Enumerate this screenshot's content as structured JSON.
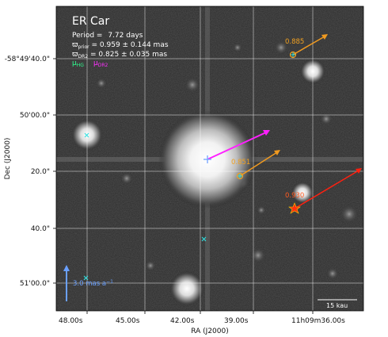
{
  "chart_data": {
    "type": "scatter",
    "title": "ER Car",
    "legend_lines": {
      "period_label": "Period = ",
      "period_value": "7.72 days",
      "plx_prior": "ϖ",
      "plx_prior_sub": "prior",
      "plx_prior_value": " = 0.959 ± 0.144 mas",
      "plx_dr2": "ϖ",
      "plx_dr2_sub": "DR2",
      "plx_dr2_value": " = 0.825 ± 0.035 mas",
      "mu_hg": "μ",
      "mu_hg_sub": "HG",
      "mu_dr2": "μ",
      "mu_dr2_sub": "DR2"
    },
    "xlabel": "RA (J2000)",
    "ylabel": "Dec (J2000)",
    "xticks": [
      "48.00s",
      "45.00s",
      "42.00s",
      "39.00s",
      "11h09m36.00s"
    ],
    "yticks": [
      "-58°49'40.0\"",
      "50'00.0\"",
      "20.0\"",
      "40.0\"",
      "51'00.0\""
    ],
    "scale_arrow_label": "3.0 mas a",
    "scale_arrow_sup": "−1",
    "scale_bar_label": "15 kau",
    "companions": [
      {
        "label": "0.885",
        "color": "#f0a020"
      },
      {
        "label": "0.851",
        "color": "#f0a020"
      },
      {
        "label": "0.930",
        "color": "#ff3b1a"
      }
    ],
    "colors": {
      "hg_arrow": "#ff20ff",
      "companion_arrow": "#f09a20",
      "red_arrow": "#ff2010",
      "cyan_marker": "#30e0e0",
      "scale_arrow": "#6aa0ff",
      "legend_hg": "#30ff90",
      "legend_dr2": "#ff30ff"
    },
    "grid": true
  }
}
